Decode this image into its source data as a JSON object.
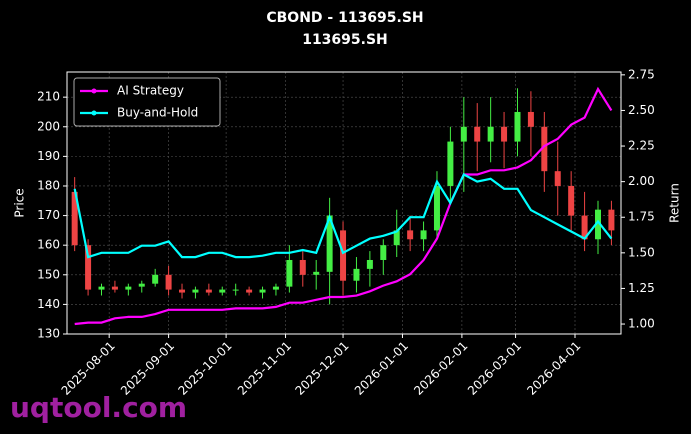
{
  "chart_data": {
    "type": "candlestick",
    "title": "CBOND - 113695.SH",
    "subtitle": "113695.SH",
    "ylabel": "Price",
    "y2label": "Return",
    "grid": true,
    "legend": "upper left",
    "up_color": "#44ee44",
    "down_color": "#ee4444",
    "xlim": [
      "2025-07-10",
      "2026-04-25"
    ],
    "xticks": [
      "2025-08-01",
      "2025-09-01",
      "2025-10-01",
      "2025-11-01",
      "2025-12-01",
      "2026-01-01",
      "2026-02-01",
      "2026-03-01",
      "2026-04-01"
    ],
    "ylim": [
      130,
      218.5
    ],
    "yticks": [
      130,
      140,
      150,
      160,
      170,
      180,
      190,
      200,
      210
    ],
    "y2lim": [
      0.93,
      2.77
    ],
    "y2ticks": [
      {
        "value": 1,
        "label": "1.00"
      },
      {
        "value": 1.25,
        "label": "1.25"
      },
      {
        "value": 1.5,
        "label": "1.50"
      },
      {
        "value": 1.75,
        "label": "1.75"
      },
      {
        "value": 2,
        "label": "2.00"
      },
      {
        "value": 2.25,
        "label": "2.25"
      },
      {
        "value": 2.5,
        "label": "2.50"
      },
      {
        "value": 2.75,
        "label": "2.75"
      }
    ],
    "x": [
      "2025-07-14",
      "2025-07-21",
      "2025-07-28",
      "2025-08-04",
      "2025-08-11",
      "2025-08-18",
      "2025-08-25",
      "2025-09-01",
      "2025-09-08",
      "2025-09-15",
      "2025-09-22",
      "2025-09-29",
      "2025-10-06",
      "2025-10-13",
      "2025-10-20",
      "2025-10-27",
      "2025-11-03",
      "2025-11-10",
      "2025-11-17",
      "2025-11-24",
      "2025-12-01",
      "2025-12-08",
      "2025-12-15",
      "2025-12-22",
      "2025-12-29",
      "2026-01-05",
      "2026-01-12",
      "2026-01-19",
      "2026-01-26",
      "2026-02-02",
      "2026-02-09",
      "2026-02-16",
      "2026-02-23",
      "2026-03-02",
      "2026-03-09",
      "2026-03-16",
      "2026-03-23",
      "2026-03-30",
      "2026-04-06",
      "2026-04-13",
      "2026-04-20"
    ],
    "open": [
      178,
      160,
      145,
      146,
      145,
      146,
      147,
      150,
      145,
      144,
      145,
      144,
      145,
      145,
      144,
      145,
      146,
      155,
      150,
      151,
      165,
      148,
      152,
      155,
      160,
      165,
      162,
      165,
      180,
      195,
      200,
      195,
      200,
      195,
      205,
      200,
      185,
      180,
      170,
      162,
      172
    ],
    "high": [
      183,
      162,
      147,
      148,
      147,
      148,
      152,
      153,
      147,
      146,
      147,
      146,
      147,
      146,
      146,
      147,
      160,
      158,
      155,
      176,
      168,
      156,
      158,
      162,
      172,
      170,
      168,
      185,
      200,
      210,
      208,
      210,
      205,
      213,
      212,
      205,
      195,
      185,
      178,
      175,
      175
    ],
    "low": [
      158,
      143,
      143,
      144,
      143,
      144,
      146,
      143,
      142,
      142,
      143,
      143,
      143,
      143,
      142,
      143,
      144,
      146,
      145,
      140,
      143,
      144,
      146,
      150,
      156,
      158,
      158,
      162,
      175,
      178,
      185,
      188,
      186,
      190,
      190,
      178,
      170,
      165,
      158,
      157,
      160
    ],
    "close": [
      160,
      145,
      146,
      145,
      146,
      147,
      150,
      145,
      144,
      145,
      144,
      145,
      145,
      144,
      145,
      146,
      155,
      150,
      151,
      170,
      148,
      152,
      155,
      160,
      165,
      162,
      165,
      180,
      195,
      200,
      195,
      200,
      195,
      205,
      200,
      185,
      180,
      170,
      162,
      172,
      165
    ],
    "series": [
      {
        "name": "AI Strategy",
        "color": "#ff00ff",
        "axis": "y2",
        "values": [
          1.0,
          1.01,
          1.01,
          1.04,
          1.05,
          1.05,
          1.07,
          1.1,
          1.1,
          1.1,
          1.1,
          1.1,
          1.11,
          1.11,
          1.11,
          1.12,
          1.15,
          1.15,
          1.17,
          1.19,
          1.19,
          1.2,
          1.23,
          1.27,
          1.3,
          1.35,
          1.45,
          1.6,
          1.85,
          2.05,
          2.05,
          2.08,
          2.08,
          2.1,
          2.15,
          2.25,
          2.3,
          2.4,
          2.45,
          2.65,
          2.5
        ]
      },
      {
        "name": "Buy-and-Hold",
        "color": "#00ffff",
        "axis": "y2",
        "values": [
          1.95,
          1.47,
          1.5,
          1.5,
          1.5,
          1.55,
          1.55,
          1.58,
          1.47,
          1.47,
          1.5,
          1.5,
          1.47,
          1.47,
          1.48,
          1.5,
          1.5,
          1.52,
          1.5,
          1.75,
          1.5,
          1.55,
          1.6,
          1.62,
          1.65,
          1.75,
          1.75,
          2.0,
          1.85,
          2.05,
          2.0,
          2.02,
          1.95,
          1.95,
          1.8,
          1.75,
          1.7,
          1.65,
          1.6,
          1.72,
          1.6
        ]
      }
    ]
  },
  "watermark": "uqtool.com"
}
